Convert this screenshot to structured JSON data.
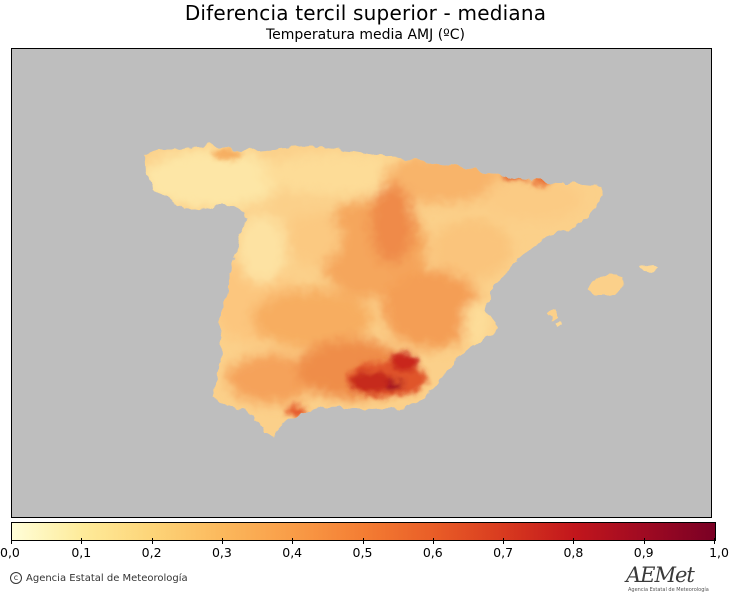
{
  "title": "Diferencia tercil superior - mediana",
  "subtitle": "Temperatura media AMJ (ºC)",
  "colors": {
    "ocean_background": "#bebebe",
    "scale": [
      "#fffed8",
      "#feeb9a",
      "#fdd478",
      "#fbb85c",
      "#f99c47",
      "#f47d33",
      "#e95d27",
      "#d83a1f",
      "#c2161c",
      "#9f0a22",
      "#7a0024"
    ]
  },
  "colorbar": {
    "ticks": [
      "0,0",
      "0,1",
      "0,2",
      "0,3",
      "0,4",
      "0,5",
      "0,6",
      "0,7",
      "0,8",
      "0,9",
      "1,0"
    ]
  },
  "footer": {
    "copyright": "Agencia Estatal de Meteorología",
    "logo_text": "AEMet",
    "logo_subtext": "Agencia Estatal de Meteorología"
  },
  "map_data": {
    "region": "Península Ibérica (España) y Baleares",
    "variable": "Diferencia tercil superior - mediana, temperatura media AMJ",
    "units": "ºC",
    "value_range": [
      0.0,
      1.0
    ],
    "typical_values": "0,2 - 0,6",
    "max_values_area": "sureste (Sierra Nevada)"
  }
}
